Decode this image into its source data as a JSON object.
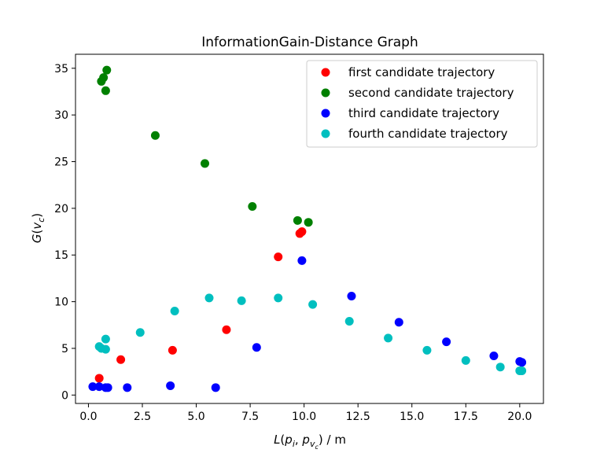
{
  "chart_data": {
    "type": "scatter",
    "title": "InformationGain-Distance Graph",
    "xlabel": {
      "base": "L",
      "open": "(",
      "a": "p",
      "a_sub": "i",
      "sep": ", ",
      "b": "p",
      "b_sub": "v",
      "b_subsub": "c",
      "close": ")",
      "unit": " / m"
    },
    "ylabel": {
      "base": "G",
      "open": "(",
      "a": "v",
      "a_sub": "c",
      "close": ")"
    },
    "xlim": [
      -0.6,
      21.1
    ],
    "ylim": [
      -0.9,
      36.5
    ],
    "xticks": [
      0.0,
      2.5,
      5.0,
      7.5,
      10.0,
      12.5,
      15.0,
      17.5,
      20.0
    ],
    "xtick_labels": [
      "0.0",
      "2.5",
      "5.0",
      "7.5",
      "10.0",
      "12.5",
      "15.0",
      "17.5",
      "20.0"
    ],
    "yticks": [
      0,
      5,
      10,
      15,
      20,
      25,
      30,
      35
    ],
    "ytick_labels": [
      "0",
      "5",
      "10",
      "15",
      "20",
      "25",
      "30",
      "35"
    ],
    "grid": false,
    "legend": "top-right",
    "series": [
      {
        "name": "first candidate trajectory",
        "color": "#ff0000",
        "points": [
          [
            0.5,
            1.8
          ],
          [
            1.5,
            3.8
          ],
          [
            3.9,
            4.8
          ],
          [
            6.4,
            7.0
          ],
          [
            8.8,
            14.8
          ],
          [
            9.8,
            17.3
          ],
          [
            9.9,
            17.5
          ]
        ]
      },
      {
        "name": "second candidate trajectory",
        "color": "#008000",
        "points": [
          [
            0.6,
            33.6
          ],
          [
            0.7,
            34.0
          ],
          [
            0.8,
            32.6
          ],
          [
            0.85,
            34.8
          ],
          [
            3.1,
            27.8
          ],
          [
            5.4,
            24.8
          ],
          [
            7.6,
            20.2
          ],
          [
            9.7,
            18.7
          ],
          [
            10.2,
            18.5
          ]
        ]
      },
      {
        "name": "third candidate trajectory",
        "color": "#0000ff",
        "points": [
          [
            0.2,
            0.9
          ],
          [
            0.5,
            0.9
          ],
          [
            0.8,
            0.8
          ],
          [
            0.9,
            0.8
          ],
          [
            1.8,
            0.8
          ],
          [
            3.8,
            1.0
          ],
          [
            5.9,
            0.8
          ],
          [
            7.8,
            5.1
          ],
          [
            9.9,
            14.4
          ],
          [
            12.2,
            10.6
          ],
          [
            14.4,
            7.8
          ],
          [
            16.6,
            5.7
          ],
          [
            18.8,
            4.2
          ],
          [
            20.0,
            3.6
          ],
          [
            20.1,
            3.5
          ]
        ]
      },
      {
        "name": "fourth candidate trajectory",
        "color": "#00bfbf",
        "points": [
          [
            0.5,
            5.2
          ],
          [
            0.6,
            5.0
          ],
          [
            0.8,
            4.9
          ],
          [
            0.8,
            6.0
          ],
          [
            2.4,
            6.7
          ],
          [
            4.0,
            9.0
          ],
          [
            5.6,
            10.4
          ],
          [
            7.1,
            10.1
          ],
          [
            8.8,
            10.4
          ],
          [
            10.4,
            9.7
          ],
          [
            12.1,
            7.9
          ],
          [
            13.9,
            6.1
          ],
          [
            15.7,
            4.8
          ],
          [
            17.5,
            3.7
          ],
          [
            19.1,
            3.0
          ],
          [
            20.0,
            2.6
          ],
          [
            20.1,
            2.6
          ]
        ]
      }
    ]
  }
}
